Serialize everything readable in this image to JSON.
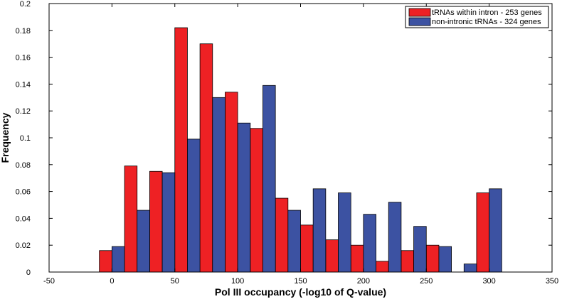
{
  "chart_data": {
    "type": "bar",
    "title": "",
    "xlabel": "Pol III occupancy (-log10 of Q-value)",
    "ylabel": "Frequency",
    "xlim": [
      -50,
      350
    ],
    "ylim": [
      0,
      0.2
    ],
    "xticks": [
      "-50",
      "0",
      "50",
      "100",
      "150",
      "200",
      "250",
      "300",
      "350"
    ],
    "yticks": [
      "0",
      "0.02",
      "0.04",
      "0.06",
      "0.08",
      "0.1",
      "0.12",
      "0.14",
      "0.16",
      "0.18",
      "0.2"
    ],
    "grid": false,
    "legend_position": "top-right",
    "bin_width": 20,
    "series": [
      {
        "name": "tRNAs within intron - 253 genes",
        "color": "#ee2124",
        "x": [
          0,
          20,
          40,
          60,
          80,
          100,
          120,
          140,
          160,
          180,
          200,
          220,
          240,
          260,
          280,
          300
        ],
        "values": [
          0.016,
          0.079,
          0.075,
          0.182,
          0.17,
          0.134,
          0.107,
          0.055,
          0.035,
          0.024,
          0.02,
          0.008,
          0.016,
          0.02,
          0,
          0.059
        ]
      },
      {
        "name": "non-intronic tRNAs - 324 genes",
        "color": "#3c52a2",
        "x": [
          0,
          20,
          40,
          60,
          80,
          100,
          120,
          140,
          160,
          180,
          200,
          220,
          240,
          260,
          280,
          300
        ],
        "values": [
          0.019,
          0.046,
          0.074,
          0.099,
          0.13,
          0.111,
          0.139,
          0.046,
          0.062,
          0.059,
          0.043,
          0.052,
          0.034,
          0.019,
          0.006,
          0.062
        ]
      }
    ]
  }
}
